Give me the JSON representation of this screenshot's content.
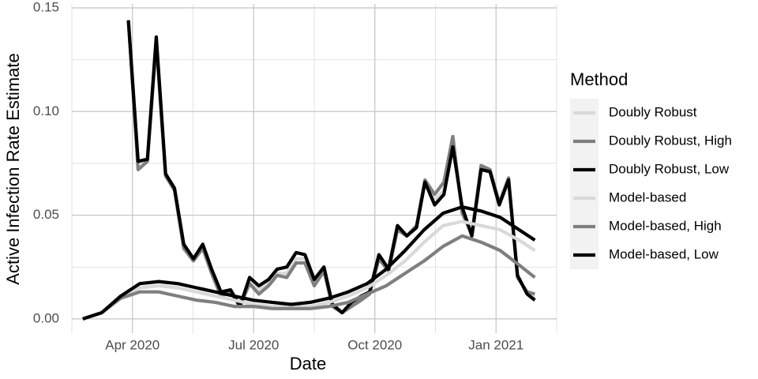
{
  "chart_data": {
    "type": "line",
    "x_label": "Date",
    "y_label": "Active Infection Rate Estimate",
    "legend_title": "Method",
    "legend_position": "right",
    "grid": true,
    "xlim": [
      1.5,
      13.5
    ],
    "xticks": [
      {
        "value": 3,
        "label": "Apr 2020"
      },
      {
        "value": 6,
        "label": "Jul 2020"
      },
      {
        "value": 9,
        "label": "Oct 2020"
      },
      {
        "value": 12,
        "label": "Jan 2021"
      }
    ],
    "xminor_ticks": [
      1.5,
      4.5,
      7.5,
      10.5,
      13.5
    ],
    "ylim": [
      -0.0069,
      0.1519
    ],
    "yticks": [
      {
        "value": 0,
        "label": "0.00"
      },
      {
        "value": 0.05,
        "label": "0.05"
      },
      {
        "value": 0.1,
        "label": "0.10"
      },
      {
        "value": 0.15,
        "label": "0.15"
      }
    ],
    "yminor_ticks": [
      0.025,
      0.075,
      0.125
    ],
    "series": [
      {
        "name": "Doubly Robust",
        "color": "#d9d9d9",
        "x": [
          2.9,
          3.14,
          3.37,
          3.59,
          3.82,
          4.04,
          4.27,
          4.51,
          4.74,
          4.96,
          5.19,
          5.43,
          5.66,
          5.9,
          6.13,
          6.37,
          6.58,
          6.82,
          7.05,
          7.27,
          7.5,
          7.74,
          7.95,
          8.19,
          8.42,
          8.66,
          8.87,
          9.1,
          9.34,
          9.56,
          9.79,
          10.03,
          10.24,
          10.48,
          10.71,
          10.93,
          11.16,
          11.4,
          11.63,
          11.85,
          12.08,
          12.31,
          12.53,
          12.77,
          12.96
        ],
        "values": [
          0.144,
          0.075,
          0.077,
          0.135,
          0.07,
          0.063,
          0.035,
          0.029,
          0.035,
          0.023,
          0.012,
          0.014,
          0.007,
          0.019,
          0.014,
          0.018,
          0.022,
          0.022,
          0.029,
          0.029,
          0.017,
          0.024,
          0.007,
          0.003,
          0.007,
          0.01,
          0.013,
          0.03,
          0.024,
          0.044,
          0.04,
          0.044,
          0.066,
          0.057,
          0.062,
          0.085,
          0.052,
          0.04,
          0.073,
          0.071,
          0.055,
          0.067,
          0.021,
          0.012,
          0.01
        ]
      },
      {
        "name": "Doubly Robust, High",
        "color": "#7f7f7f",
        "x": [
          2.9,
          3.14,
          3.37,
          3.59,
          3.82,
          4.04,
          4.27,
          4.51,
          4.74,
          4.96,
          5.19,
          5.43,
          5.66,
          5.9,
          6.13,
          6.37,
          6.58,
          6.82,
          7.05,
          7.27,
          7.5,
          7.74,
          7.95,
          8.19,
          8.42,
          8.66,
          8.87,
          9.1,
          9.34,
          9.56,
          9.79,
          10.03,
          10.24,
          10.48,
          10.71,
          10.93,
          11.16,
          11.4,
          11.63,
          11.85,
          12.08,
          12.31,
          12.53,
          12.77,
          12.96
        ],
        "values": [
          0.144,
          0.072,
          0.076,
          0.133,
          0.069,
          0.062,
          0.034,
          0.028,
          0.034,
          0.022,
          0.011,
          0.013,
          0.006,
          0.017,
          0.012,
          0.016,
          0.021,
          0.02,
          0.027,
          0.027,
          0.016,
          0.023,
          0.006,
          0.003,
          0.006,
          0.009,
          0.012,
          0.029,
          0.023,
          0.043,
          0.04,
          0.045,
          0.067,
          0.06,
          0.066,
          0.088,
          0.051,
          0.041,
          0.074,
          0.072,
          0.056,
          0.068,
          0.02,
          0.013,
          0.012
        ]
      },
      {
        "name": "Doubly Robust, Low",
        "color": "#000000",
        "x": [
          2.9,
          3.14,
          3.37,
          3.59,
          3.82,
          4.04,
          4.27,
          4.51,
          4.74,
          4.96,
          5.19,
          5.43,
          5.66,
          5.9,
          6.13,
          6.37,
          6.58,
          6.82,
          7.05,
          7.27,
          7.5,
          7.74,
          7.95,
          8.19,
          8.42,
          8.66,
          8.87,
          9.1,
          9.34,
          9.56,
          9.79,
          10.03,
          10.24,
          10.48,
          10.71,
          10.93,
          11.16,
          11.4,
          11.63,
          11.85,
          12.08,
          12.31,
          12.53,
          12.77,
          12.96
        ],
        "values": [
          0.144,
          0.076,
          0.077,
          0.136,
          0.07,
          0.063,
          0.036,
          0.029,
          0.036,
          0.024,
          0.013,
          0.014,
          0.006,
          0.02,
          0.016,
          0.019,
          0.024,
          0.025,
          0.032,
          0.031,
          0.019,
          0.025,
          0.007,
          0.003,
          0.008,
          0.011,
          0.013,
          0.031,
          0.024,
          0.045,
          0.04,
          0.044,
          0.066,
          0.055,
          0.06,
          0.083,
          0.054,
          0.04,
          0.072,
          0.071,
          0.055,
          0.067,
          0.021,
          0.012,
          0.009
        ]
      },
      {
        "name": "Model-based",
        "color": "#d9d9d9",
        "x": [
          1.77,
          2.24,
          2.71,
          3.18,
          3.65,
          4.12,
          4.59,
          5.05,
          5.52,
          5.99,
          6.46,
          6.93,
          7.4,
          7.87,
          8.34,
          8.81,
          9.28,
          9.75,
          10.22,
          10.69,
          11.16,
          11.63,
          12.1,
          12.57,
          12.96
        ],
        "values": [
          0.0,
          0.003,
          0.01,
          0.015,
          0.016,
          0.015,
          0.013,
          0.011,
          0.009,
          0.007,
          0.006,
          0.006,
          0.006,
          0.008,
          0.011,
          0.015,
          0.021,
          0.028,
          0.037,
          0.045,
          0.047,
          0.045,
          0.043,
          0.038,
          0.033
        ]
      },
      {
        "name": "Model-based, High",
        "color": "#7f7f7f",
        "x": [
          1.77,
          2.24,
          2.71,
          3.18,
          3.65,
          4.12,
          4.59,
          5.05,
          5.52,
          5.99,
          6.46,
          6.93,
          7.4,
          7.87,
          8.34,
          8.81,
          9.28,
          9.75,
          10.22,
          10.69,
          11.16,
          11.63,
          12.1,
          12.57,
          12.96
        ],
        "values": [
          0.0,
          0.003,
          0.01,
          0.013,
          0.013,
          0.011,
          0.009,
          0.008,
          0.006,
          0.006,
          0.005,
          0.005,
          0.005,
          0.006,
          0.008,
          0.012,
          0.016,
          0.022,
          0.028,
          0.035,
          0.04,
          0.037,
          0.033,
          0.026,
          0.02
        ]
      },
      {
        "name": "Model-based, Low",
        "color": "#000000",
        "x": [
          1.77,
          2.24,
          2.71,
          3.18,
          3.65,
          4.12,
          4.59,
          5.05,
          5.52,
          5.99,
          6.46,
          6.93,
          7.4,
          7.87,
          8.34,
          8.81,
          9.28,
          9.75,
          10.22,
          10.69,
          11.16,
          11.63,
          12.1,
          12.57,
          12.96
        ],
        "values": [
          0.0,
          0.003,
          0.011,
          0.017,
          0.018,
          0.017,
          0.015,
          0.013,
          0.011,
          0.009,
          0.008,
          0.007,
          0.008,
          0.01,
          0.013,
          0.017,
          0.024,
          0.033,
          0.043,
          0.051,
          0.054,
          0.052,
          0.049,
          0.043,
          0.038
        ]
      }
    ]
  }
}
